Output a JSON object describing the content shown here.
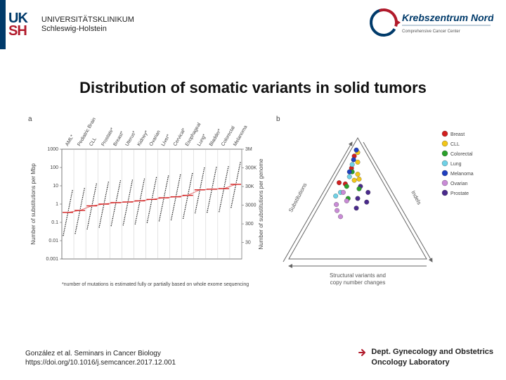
{
  "header": {
    "logo_top": "UK",
    "logo_bottom": "SH",
    "institution_line1": "UNIVERSITÄTSKLINIKUM",
    "institution_line2": "Schleswig-Holstein",
    "krebs_line1": "Krebszentrum Nord",
    "krebs_line2": "Comprehensive Cancer Center"
  },
  "title": "Distribution of somatic variants in solid tumors",
  "panelA": {
    "label": "a",
    "ylab": "Number of substitutions per Mbp",
    "ylab_right": "Number of substitutions per genome",
    "categories": [
      "AML*",
      "Pediatric Brain",
      "CLL",
      "Prostate*",
      "Breast*",
      "Uterus*",
      "Kidney*",
      "Ovarian",
      "Liver*",
      "Cervical*",
      "Esophageal",
      "Lung*",
      "Bladder*",
      "Colorectal",
      "Melanoma"
    ],
    "yticks_left": [
      "1000",
      "100",
      "10",
      "1",
      "0.1",
      "0.01",
      "0.001"
    ],
    "yticks_left_vals": [
      1000,
      100,
      10,
      1,
      0.1,
      0.01,
      0.001
    ],
    "yticks_right": [
      "3M",
      "300K",
      "30K",
      "3000",
      "300",
      "30"
    ],
    "medians": [
      0.35,
      0.45,
      0.8,
      1.0,
      1.2,
      1.3,
      1.5,
      1.8,
      2.2,
      2.5,
      3.0,
      6.0,
      6.5,
      7.0,
      12.0
    ],
    "footnote": "*number of mutations is estimated fully or partially based on whole exome sequencing",
    "colors": {
      "median_line": "#d21f1f",
      "points": "#000000",
      "axis": "#444444"
    }
  },
  "panelB": {
    "label": "b",
    "legend": [
      {
        "name": "Breast",
        "color": "#d21f1f"
      },
      {
        "name": "CLL",
        "color": "#f2c618"
      },
      {
        "name": "Colorectal",
        "color": "#2aa02a"
      },
      {
        "name": "Lung",
        "color": "#6fd1e6"
      },
      {
        "name": "Melanoma",
        "color": "#1f3fbf"
      },
      {
        "name": "Ovarian",
        "color": "#c98bd6"
      },
      {
        "name": "Prostate",
        "color": "#4a2a8c"
      }
    ],
    "vertices": {
      "top": "Substitutions",
      "right": "Indels",
      "bottom": "Structural variants and\ncopy number changes"
    },
    "points": [
      {
        "a": 0.85,
        "b": 0.05,
        "c": 0.1,
        "k": 0
      },
      {
        "a": 0.75,
        "b": 0.08,
        "c": 0.17,
        "k": 0
      },
      {
        "a": 0.62,
        "b": 0.1,
        "c": 0.28,
        "k": 0
      },
      {
        "a": 0.88,
        "b": 0.06,
        "c": 0.06,
        "k": 1
      },
      {
        "a": 0.8,
        "b": 0.1,
        "c": 0.1,
        "k": 1
      },
      {
        "a": 0.7,
        "b": 0.15,
        "c": 0.15,
        "k": 1
      },
      {
        "a": 0.65,
        "b": 0.15,
        "c": 0.2,
        "k": 1
      },
      {
        "a": 0.72,
        "b": 0.1,
        "c": 0.18,
        "k": 2
      },
      {
        "a": 0.6,
        "b": 0.12,
        "c": 0.28,
        "k": 2
      },
      {
        "a": 0.5,
        "b": 0.18,
        "c": 0.32,
        "k": 2
      },
      {
        "a": 0.78,
        "b": 0.07,
        "c": 0.15,
        "k": 3
      },
      {
        "a": 0.68,
        "b": 0.1,
        "c": 0.22,
        "k": 3
      },
      {
        "a": 0.55,
        "b": 0.1,
        "c": 0.35,
        "k": 3
      },
      {
        "a": 0.9,
        "b": 0.04,
        "c": 0.06,
        "k": 4
      },
      {
        "a": 0.82,
        "b": 0.06,
        "c": 0.12,
        "k": 4
      },
      {
        "a": 0.72,
        "b": 0.08,
        "c": 0.2,
        "k": 4
      },
      {
        "a": 0.45,
        "b": 0.12,
        "c": 0.43,
        "k": 5
      },
      {
        "a": 0.55,
        "b": 0.12,
        "c": 0.33,
        "k": 5
      },
      {
        "a": 0.48,
        "b": 0.18,
        "c": 0.34,
        "k": 5
      },
      {
        "a": 0.4,
        "b": 0.15,
        "c": 0.45,
        "k": 5
      },
      {
        "a": 0.6,
        "b": 0.22,
        "c": 0.18,
        "k": 6
      },
      {
        "a": 0.5,
        "b": 0.25,
        "c": 0.25,
        "k": 6
      },
      {
        "a": 0.55,
        "b": 0.3,
        "c": 0.15,
        "k": 6
      },
      {
        "a": 0.42,
        "b": 0.28,
        "c": 0.3,
        "k": 6
      },
      {
        "a": 0.63,
        "b": 0.05,
        "c": 0.32,
        "k": 0
      },
      {
        "a": 0.58,
        "b": 0.22,
        "c": 0.2,
        "k": 2
      },
      {
        "a": 0.52,
        "b": 0.08,
        "c": 0.4,
        "k": 3
      },
      {
        "a": 0.66,
        "b": 0.18,
        "c": 0.16,
        "k": 1
      },
      {
        "a": 0.35,
        "b": 0.2,
        "c": 0.45,
        "k": 5
      },
      {
        "a": 0.47,
        "b": 0.33,
        "c": 0.2,
        "k": 6
      }
    ],
    "point_radius": 3.3,
    "triangle_stroke": "#666666",
    "arrow_color": "#666666"
  },
  "citation": {
    "line1": "González et al. Seminars in Cancer Biology",
    "line2": "https://doi.org/10.1016/j.semcancer.2017.12.001"
  },
  "dept": {
    "line1": "Dept. Gynecology and Obstetrics",
    "line2": "Oncology Laboratory"
  }
}
